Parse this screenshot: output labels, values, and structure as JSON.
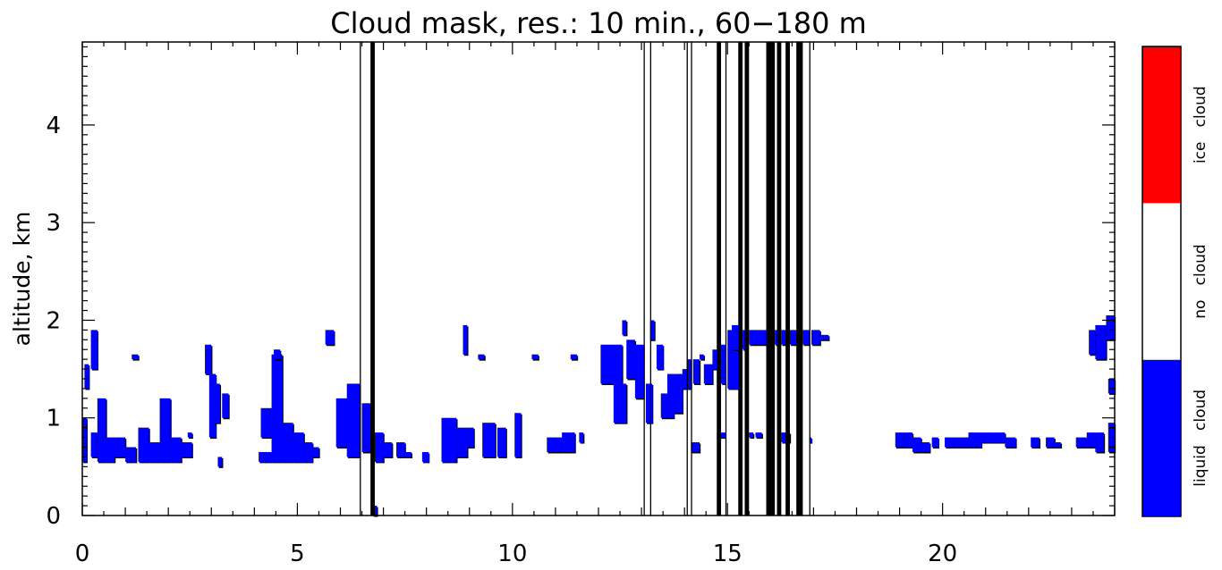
{
  "chart_data": {
    "type": "heatmap",
    "title": "Cloud mask, res.: 10 min., 60−180 m",
    "xlabel": "",
    "ylabel": "altitude, km",
    "xlim": [
      0,
      24
    ],
    "ylim": [
      0,
      4.85
    ],
    "x_ticks": [
      "0",
      "5",
      "10",
      "15",
      "20"
    ],
    "y_ticks": [
      "0",
      "1",
      "2",
      "3",
      "4"
    ],
    "colorbar": {
      "categories": [
        {
          "label": "liquid cloud",
          "color": "#0000ff"
        },
        {
          "label": "no cloud",
          "color": "#ffffff"
        },
        {
          "label": "ice cloud",
          "color": "#ff0000"
        }
      ]
    },
    "no_data_columns_hours": [
      [
        6.45,
        6.5
      ],
      [
        6.7,
        6.8
      ],
      [
        13.05,
        13.1
      ],
      [
        13.2,
        13.22
      ],
      [
        14.05,
        14.1
      ],
      [
        14.15,
        14.17
      ],
      [
        14.75,
        14.85
      ],
      [
        14.95,
        15.0
      ],
      [
        15.25,
        15.35
      ],
      [
        15.4,
        15.5
      ],
      [
        15.9,
        16.1
      ],
      [
        16.15,
        16.25
      ],
      [
        16.35,
        16.45
      ],
      [
        16.6,
        16.75
      ],
      [
        16.9,
        16.95
      ]
    ],
    "liquid_cloud_cells": [
      [
        0.0,
        0.1,
        0.55,
        1.0
      ],
      [
        0.05,
        0.15,
        1.3,
        1.55
      ],
      [
        0.2,
        0.35,
        0.6,
        0.85
      ],
      [
        0.2,
        0.35,
        1.5,
        1.9
      ],
      [
        0.35,
        0.55,
        0.55,
        1.2
      ],
      [
        0.55,
        0.75,
        0.55,
        0.8
      ],
      [
        0.75,
        1.0,
        0.6,
        0.8
      ],
      [
        1.0,
        1.25,
        0.55,
        0.7
      ],
      [
        1.15,
        1.3,
        1.6,
        1.65
      ],
      [
        1.3,
        1.55,
        0.55,
        0.9
      ],
      [
        1.55,
        1.8,
        0.55,
        0.75
      ],
      [
        1.8,
        2.05,
        0.55,
        1.2
      ],
      [
        2.05,
        2.3,
        0.55,
        0.8
      ],
      [
        2.3,
        2.55,
        0.6,
        0.75
      ],
      [
        2.45,
        2.55,
        0.8,
        0.85
      ],
      [
        2.85,
        3.0,
        1.45,
        1.75
      ],
      [
        2.95,
        3.1,
        0.8,
        1.45
      ],
      [
        3.05,
        3.2,
        0.95,
        1.35
      ],
      [
        3.15,
        3.25,
        0.5,
        0.6
      ],
      [
        3.25,
        3.4,
        1.0,
        1.25
      ],
      [
        4.1,
        4.4,
        0.55,
        0.65
      ],
      [
        4.15,
        4.4,
        0.8,
        1.1
      ],
      [
        4.4,
        4.65,
        0.55,
        1.65
      ],
      [
        4.45,
        4.6,
        1.6,
        1.7
      ],
      [
        4.65,
        4.9,
        0.55,
        0.95
      ],
      [
        4.9,
        5.15,
        0.55,
        0.85
      ],
      [
        5.15,
        5.35,
        0.55,
        0.75
      ],
      [
        5.35,
        5.5,
        0.6,
        0.7
      ],
      [
        5.65,
        5.85,
        1.75,
        1.9
      ],
      [
        5.9,
        6.2,
        0.7,
        1.2
      ],
      [
        6.15,
        6.45,
        0.6,
        1.35
      ],
      [
        6.5,
        6.7,
        0.65,
        1.15
      ],
      [
        6.8,
        7.0,
        0.55,
        0.85
      ],
      [
        6.75,
        6.85,
        0.0,
        0.1
      ],
      [
        7.0,
        7.2,
        0.6,
        0.75
      ],
      [
        7.3,
        7.5,
        0.6,
        0.75
      ],
      [
        7.5,
        7.65,
        0.6,
        0.65
      ],
      [
        7.9,
        8.05,
        0.55,
        0.65
      ],
      [
        8.35,
        8.7,
        0.55,
        1.0
      ],
      [
        8.7,
        8.95,
        0.6,
        0.9
      ],
      [
        8.85,
        8.95,
        1.65,
        1.95
      ],
      [
        8.95,
        9.1,
        0.7,
        0.9
      ],
      [
        9.2,
        9.35,
        1.6,
        1.65
      ],
      [
        9.3,
        9.6,
        0.6,
        0.95
      ],
      [
        9.65,
        9.85,
        0.6,
        0.9
      ],
      [
        10.05,
        10.2,
        0.6,
        1.05
      ],
      [
        10.45,
        10.6,
        1.6,
        1.65
      ],
      [
        10.8,
        11.15,
        0.65,
        0.8
      ],
      [
        11.15,
        11.45,
        0.65,
        0.85
      ],
      [
        11.35,
        11.5,
        1.6,
        1.65
      ],
      [
        11.55,
        11.65,
        0.75,
        0.85
      ],
      [
        12.05,
        12.55,
        1.35,
        1.75
      ],
      [
        12.35,
        12.65,
        0.95,
        1.35
      ],
      [
        12.55,
        12.65,
        1.85,
        2.0
      ],
      [
        12.65,
        12.85,
        1.4,
        1.8
      ],
      [
        12.85,
        13.05,
        1.2,
        1.75
      ],
      [
        13.1,
        13.25,
        0.95,
        1.35
      ],
      [
        13.2,
        13.3,
        1.8,
        2.0
      ],
      [
        13.35,
        13.5,
        1.5,
        1.75
      ],
      [
        13.45,
        13.6,
        1.0,
        1.25
      ],
      [
        13.6,
        13.75,
        1.0,
        1.45
      ],
      [
        13.75,
        13.95,
        1.05,
        1.45
      ],
      [
        13.95,
        14.05,
        1.3,
        1.5
      ],
      [
        14.05,
        14.15,
        1.3,
        1.6
      ],
      [
        14.2,
        14.35,
        1.35,
        1.6
      ],
      [
        14.35,
        14.45,
        1.6,
        1.65
      ],
      [
        14.15,
        14.35,
        0.65,
        0.75
      ],
      [
        14.45,
        14.65,
        1.35,
        1.55
      ],
      [
        14.65,
        14.75,
        1.5,
        1.7
      ],
      [
        14.85,
        14.95,
        1.35,
        1.75
      ],
      [
        14.8,
        14.95,
        0.8,
        0.85
      ],
      [
        15.0,
        15.25,
        1.3,
        1.9
      ],
      [
        15.1,
        15.25,
        1.7,
        1.95
      ],
      [
        15.35,
        15.4,
        1.7,
        1.9
      ],
      [
        15.5,
        15.9,
        1.75,
        1.9
      ],
      [
        15.5,
        15.6,
        0.8,
        0.85
      ],
      [
        16.1,
        16.15,
        1.75,
        1.9
      ],
      [
        16.25,
        16.35,
        1.75,
        1.9
      ],
      [
        16.45,
        16.6,
        1.75,
        1.9
      ],
      [
        16.75,
        16.9,
        1.75,
        1.9
      ],
      [
        16.95,
        17.15,
        1.75,
        1.9
      ],
      [
        17.15,
        17.35,
        1.8,
        1.85
      ],
      [
        15.65,
        15.8,
        0.8,
        0.85
      ],
      [
        16.25,
        16.35,
        0.75,
        0.85
      ],
      [
        16.35,
        16.45,
        0.75,
        0.85
      ],
      [
        16.9,
        16.95,
        0.75,
        0.8
      ],
      [
        18.9,
        19.1,
        0.7,
        0.85
      ],
      [
        19.1,
        19.3,
        0.7,
        0.85
      ],
      [
        19.3,
        19.5,
        0.65,
        0.8
      ],
      [
        19.5,
        19.7,
        0.65,
        0.75
      ],
      [
        19.75,
        19.9,
        0.7,
        0.8
      ],
      [
        20.05,
        20.3,
        0.7,
        0.8
      ],
      [
        20.3,
        20.6,
        0.7,
        0.8
      ],
      [
        20.6,
        20.9,
        0.7,
        0.85
      ],
      [
        20.9,
        21.2,
        0.75,
        0.85
      ],
      [
        21.2,
        21.45,
        0.75,
        0.85
      ],
      [
        21.45,
        21.7,
        0.7,
        0.8
      ],
      [
        22.05,
        22.25,
        0.7,
        0.8
      ],
      [
        22.4,
        22.6,
        0.7,
        0.8
      ],
      [
        22.6,
        22.75,
        0.7,
        0.75
      ],
      [
        23.1,
        23.35,
        0.7,
        0.8
      ],
      [
        23.35,
        23.55,
        0.7,
        0.85
      ],
      [
        23.55,
        23.75,
        0.65,
        0.85
      ],
      [
        23.85,
        24.0,
        0.65,
        0.95
      ],
      [
        23.85,
        24.0,
        1.25,
        1.4
      ],
      [
        23.4,
        23.55,
        1.65,
        1.9
      ],
      [
        23.55,
        23.8,
        1.6,
        1.95
      ],
      [
        23.8,
        24.0,
        1.8,
        2.05
      ]
    ]
  }
}
